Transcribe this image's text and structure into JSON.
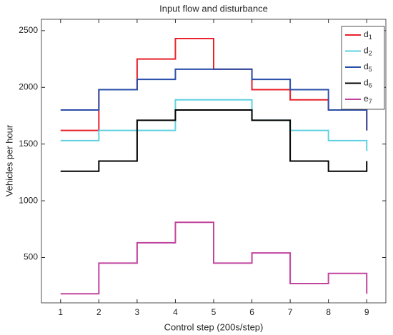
{
  "chart_data": {
    "type": "stairs",
    "title": "Input flow and disturbance",
    "x_label": "Control step (200s/step)",
    "y_label": "Vehicles per hour",
    "x": [
      1,
      2,
      3,
      4,
      5,
      6,
      7,
      8,
      9
    ],
    "xlim": [
      0.5,
      9.5
    ],
    "xticks": [
      1,
      2,
      3,
      4,
      5,
      6,
      7,
      8,
      9
    ],
    "ylim": [
      100,
      2600
    ],
    "yticks": [
      500,
      1000,
      1500,
      2000,
      2500
    ],
    "legend": "upper right",
    "series": [
      {
        "name": "d1",
        "color": "#e8212b",
        "values": [
          1620,
          1980,
          2250,
          2430,
          2160,
          1980,
          1890,
          1800,
          1620
        ]
      },
      {
        "name": "d2",
        "color": "#5fd0e0",
        "values": [
          1530,
          1620,
          1620,
          1890,
          1890,
          1710,
          1620,
          1530,
          1440
        ]
      },
      {
        "name": "d5",
        "color": "#2a4fa8",
        "values": [
          1800,
          1980,
          2070,
          2160,
          2160,
          2070,
          1980,
          1800,
          1620
        ]
      },
      {
        "name": "d6",
        "color": "#000000",
        "values": [
          1260,
          1350,
          1710,
          1800,
          1800,
          1710,
          1350,
          1260,
          1350
        ]
      },
      {
        "name": "e7",
        "color": "#c0449e",
        "values": [
          180,
          450,
          630,
          810,
          450,
          540,
          270,
          360,
          180
        ]
      }
    ]
  }
}
